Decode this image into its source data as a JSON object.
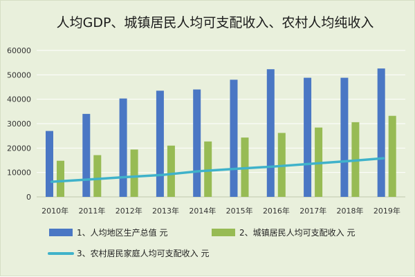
{
  "chart_data": {
    "type": "bar",
    "title": "人均GDP、城镇居民人均可支配收入、农村人均纯收入",
    "categories": [
      "2010年",
      "2011年",
      "2012年",
      "2013年",
      "2014年",
      "2015年",
      "2016年",
      "2017年",
      "2018年",
      "2019年"
    ],
    "ylim": [
      0,
      60000
    ],
    "yticks": [
      "0",
      "10000",
      "20000",
      "30000",
      "40000",
      "50000",
      "60000"
    ],
    "grid": true,
    "legend_position": "bottom",
    "series": [
      {
        "name": "1、人均地区生产总值 元",
        "type": "bar",
        "color": "#4a77c4",
        "values": [
          27000,
          34000,
          40300,
          43500,
          44000,
          48000,
          52300,
          48800,
          48800,
          52600
        ]
      },
      {
        "name": "2、城镇居民人均可支配收入 元",
        "type": "bar",
        "color": "#97bb54",
        "values": [
          14800,
          17100,
          19400,
          21000,
          22700,
          24300,
          26200,
          28400,
          30600,
          33200
        ]
      },
      {
        "name": "3、农村居民家庭人均可支配收入 元",
        "type": "line",
        "color": "#3fb2ca",
        "values": [
          6200,
          7100,
          8100,
          9000,
          10500,
          11500,
          12400,
          13500,
          14600,
          15800
        ]
      }
    ]
  }
}
